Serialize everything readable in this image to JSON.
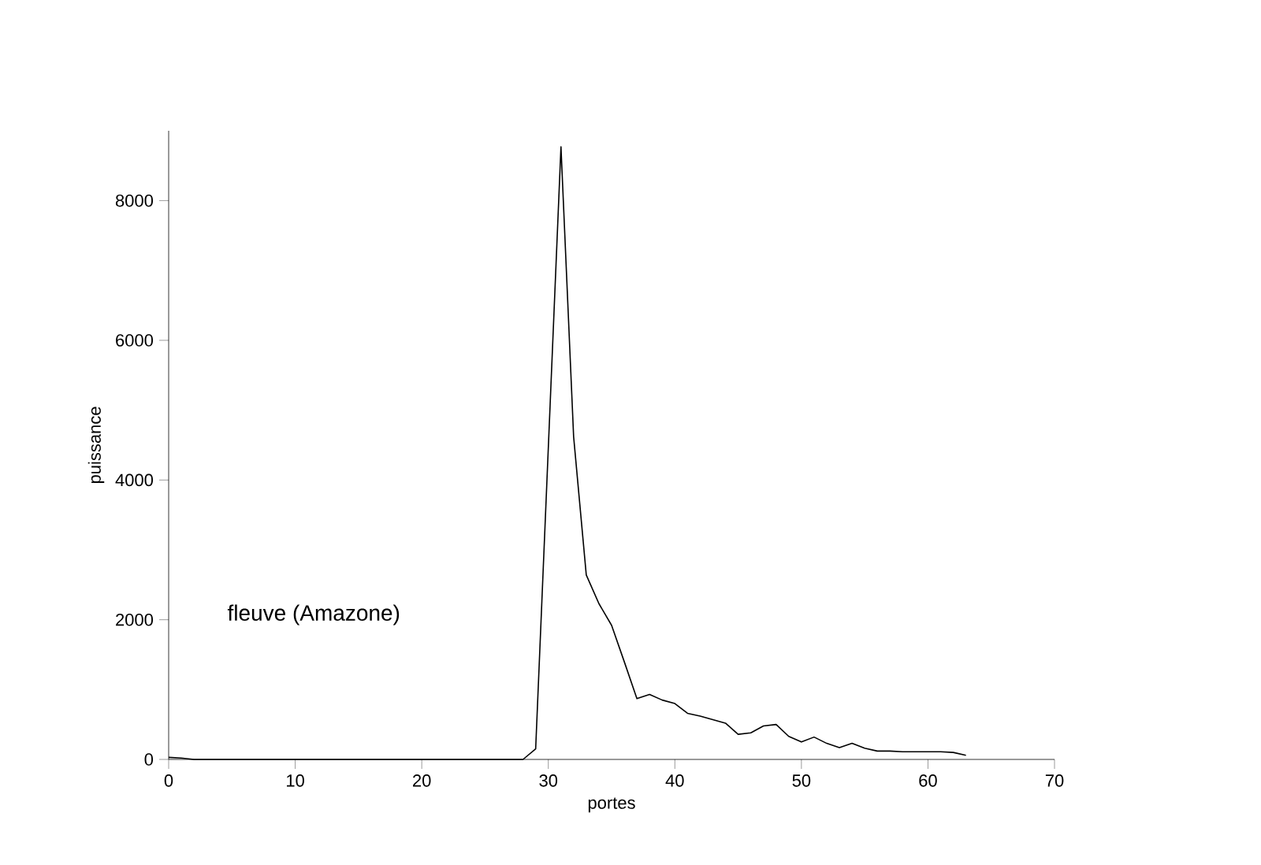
{
  "chart_data": {
    "type": "line",
    "xlabel": "portes",
    "ylabel": "puissance",
    "annotations": [
      "fleuve (Amazone)"
    ],
    "xlim": [
      0,
      70
    ],
    "ylim": [
      0,
      9000
    ],
    "xticks": [
      0,
      10,
      20,
      30,
      40,
      50,
      60,
      70
    ],
    "yticks": [
      0,
      2000,
      4000,
      6000,
      8000
    ],
    "series": [
      {
        "color": "#000000",
        "x": [
          0,
          1,
          2,
          5,
          10,
          15,
          20,
          25,
          28,
          29,
          31,
          32,
          33,
          34,
          35,
          36,
          37,
          38,
          39,
          40,
          41,
          42,
          43,
          44,
          45,
          46,
          47,
          48,
          49,
          50,
          51,
          52,
          53,
          54,
          55,
          56,
          57,
          58,
          59,
          60,
          61,
          62,
          63
        ],
        "values": [
          30,
          20,
          0,
          0,
          0,
          0,
          0,
          0,
          0,
          150,
          8770,
          4620,
          2640,
          2230,
          1920,
          1400,
          870,
          930,
          850,
          800,
          660,
          620,
          570,
          520,
          360,
          380,
          480,
          500,
          330,
          250,
          320,
          230,
          170,
          230,
          160,
          120,
          120,
          110,
          110,
          110,
          110,
          100,
          60
        ]
      }
    ],
    "grid": false,
    "marker": "none",
    "line_style": "solid"
  }
}
